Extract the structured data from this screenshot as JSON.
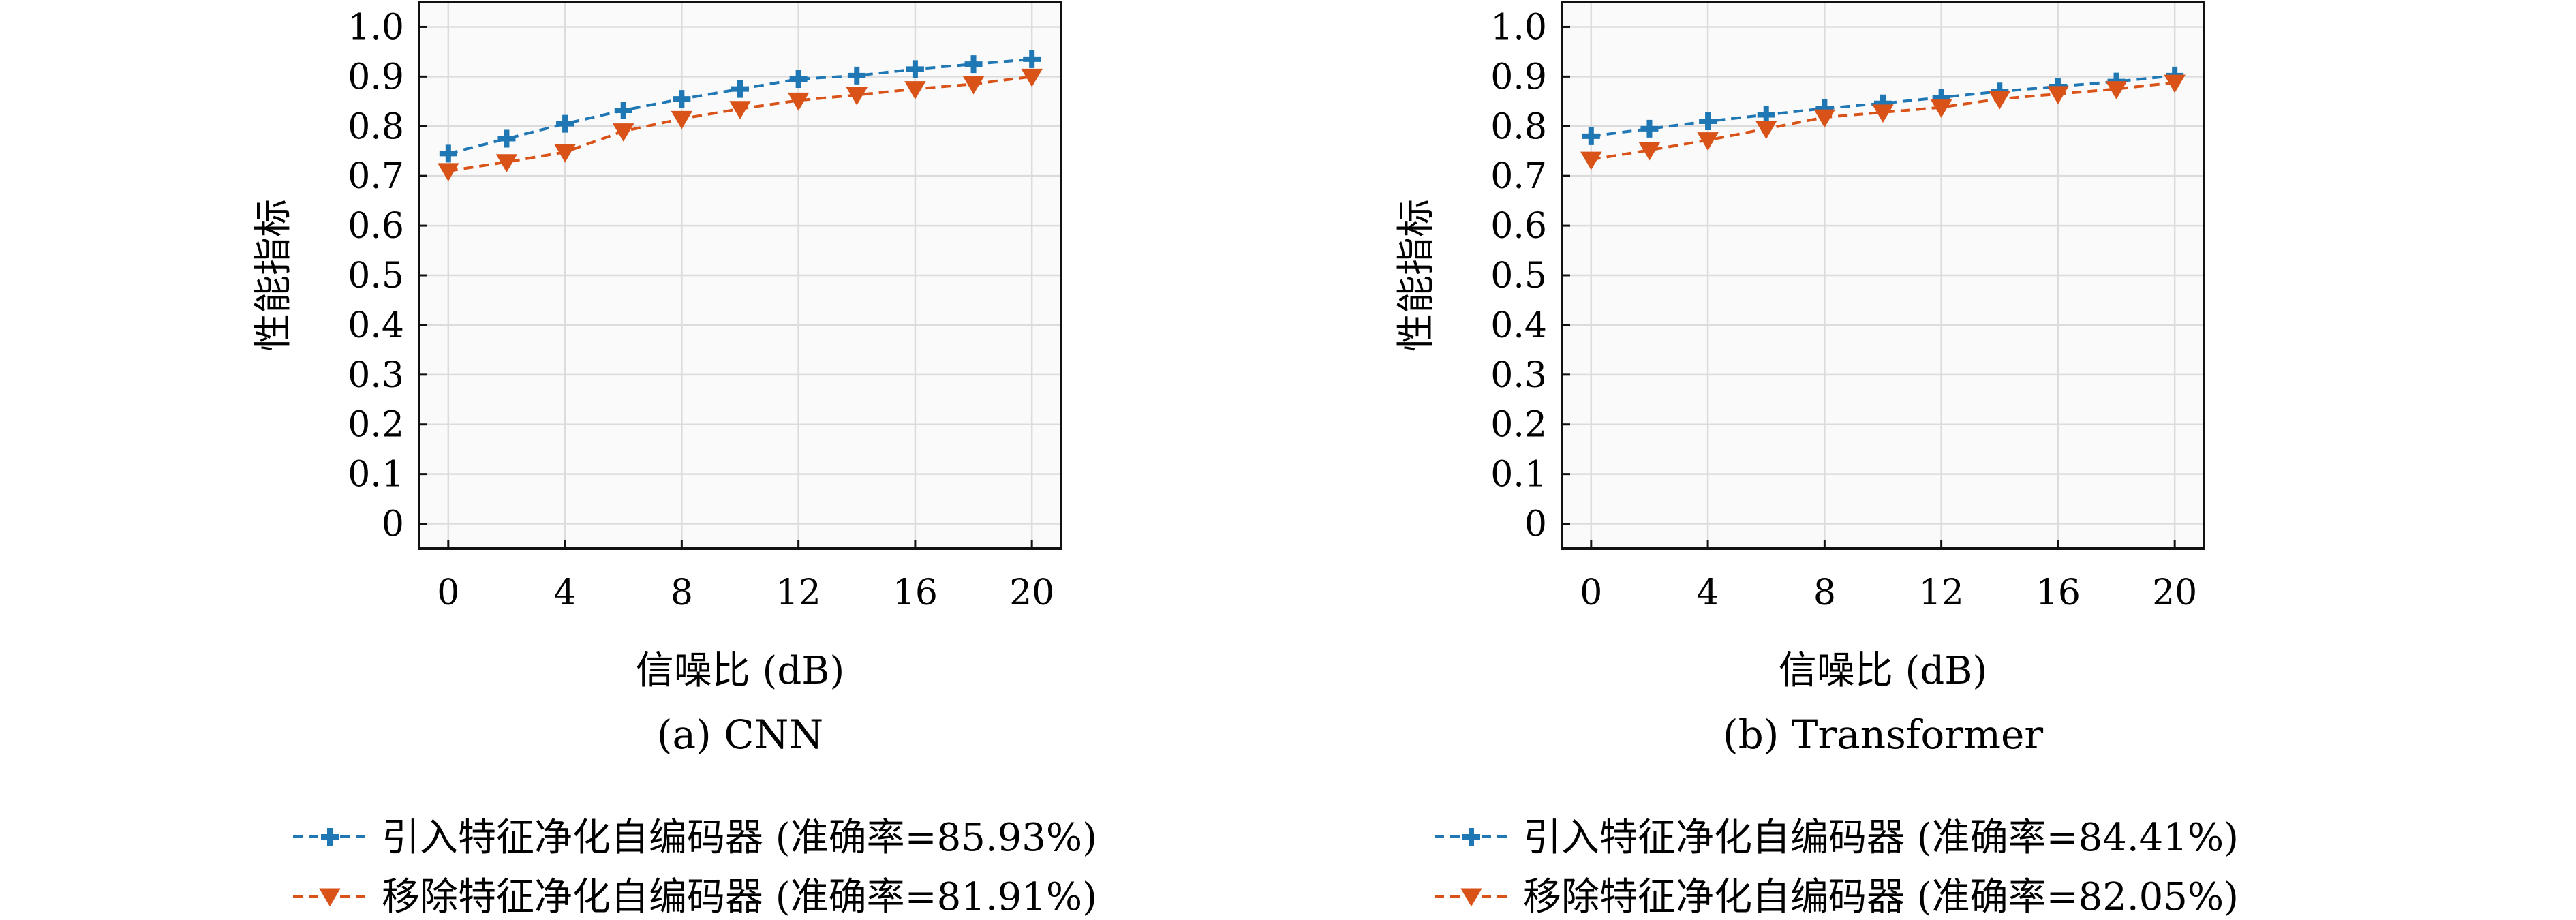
{
  "chart_data": [
    {
      "type": "line",
      "caption": "(a) CNN",
      "xlabel": "信噪比 (dB)",
      "ylabel": "性能指标",
      "x": [
        0,
        2,
        4,
        6,
        8,
        10,
        12,
        14,
        16,
        18,
        20
      ],
      "xticks": [
        "0",
        "4",
        "8",
        "12",
        "16",
        "20"
      ],
      "xtick_values": [
        0,
        4,
        8,
        12,
        16,
        20
      ],
      "yticks": [
        "0",
        "0.1",
        "0.2",
        "0.3",
        "0.4",
        "0.5",
        "0.6",
        "0.7",
        "0.8",
        "0.9",
        "1.0"
      ],
      "ytick_values": [
        0,
        0.1,
        0.2,
        0.3,
        0.4,
        0.5,
        0.6,
        0.7,
        0.8,
        0.9,
        1.0
      ],
      "xlim": [
        -1,
        21
      ],
      "ylim": [
        -0.05,
        1.05
      ],
      "grid": true,
      "series": [
        {
          "name": "引入特征净化自编码器 (准确率=85.93%)",
          "color": "#1f77b4",
          "marker": "plus",
          "values": [
            0.745,
            0.775,
            0.805,
            0.832,
            0.855,
            0.875,
            0.895,
            0.902,
            0.915,
            0.925,
            0.935
          ]
        },
        {
          "name": "移除特征净化自编码器 (准确率=81.91%)",
          "color": "#d95319",
          "marker": "triangle-down",
          "values": [
            0.71,
            0.728,
            0.748,
            0.79,
            0.815,
            0.835,
            0.852,
            0.863,
            0.875,
            0.885,
            0.9
          ]
        }
      ]
    },
    {
      "type": "line",
      "caption": "(b) Transformer",
      "xlabel": "信噪比 (dB)",
      "ylabel": "性能指标",
      "x": [
        0,
        2,
        4,
        6,
        8,
        10,
        12,
        14,
        16,
        18,
        20
      ],
      "xticks": [
        "0",
        "4",
        "8",
        "12",
        "16",
        "20"
      ],
      "xtick_values": [
        0,
        4,
        8,
        12,
        16,
        20
      ],
      "yticks": [
        "0",
        "0.1",
        "0.2",
        "0.3",
        "0.4",
        "0.5",
        "0.6",
        "0.7",
        "0.8",
        "0.9",
        "1.0"
      ],
      "ytick_values": [
        0,
        0.1,
        0.2,
        0.3,
        0.4,
        0.5,
        0.6,
        0.7,
        0.8,
        0.9,
        1.0
      ],
      "xlim": [
        -1,
        21
      ],
      "ylim": [
        -0.05,
        1.05
      ],
      "grid": true,
      "series": [
        {
          "name": "引入特征净化自编码器 (准确率=84.41%)",
          "color": "#1f77b4",
          "marker": "plus",
          "values": [
            0.78,
            0.795,
            0.81,
            0.823,
            0.836,
            0.846,
            0.858,
            0.87,
            0.88,
            0.89,
            0.902
          ]
        },
        {
          "name": "移除特征净化自编码器 (准确率=82.05%)",
          "color": "#d95319",
          "marker": "triangle-down",
          "values": [
            0.733,
            0.752,
            0.772,
            0.795,
            0.818,
            0.828,
            0.838,
            0.855,
            0.865,
            0.875,
            0.888
          ]
        }
      ]
    }
  ]
}
